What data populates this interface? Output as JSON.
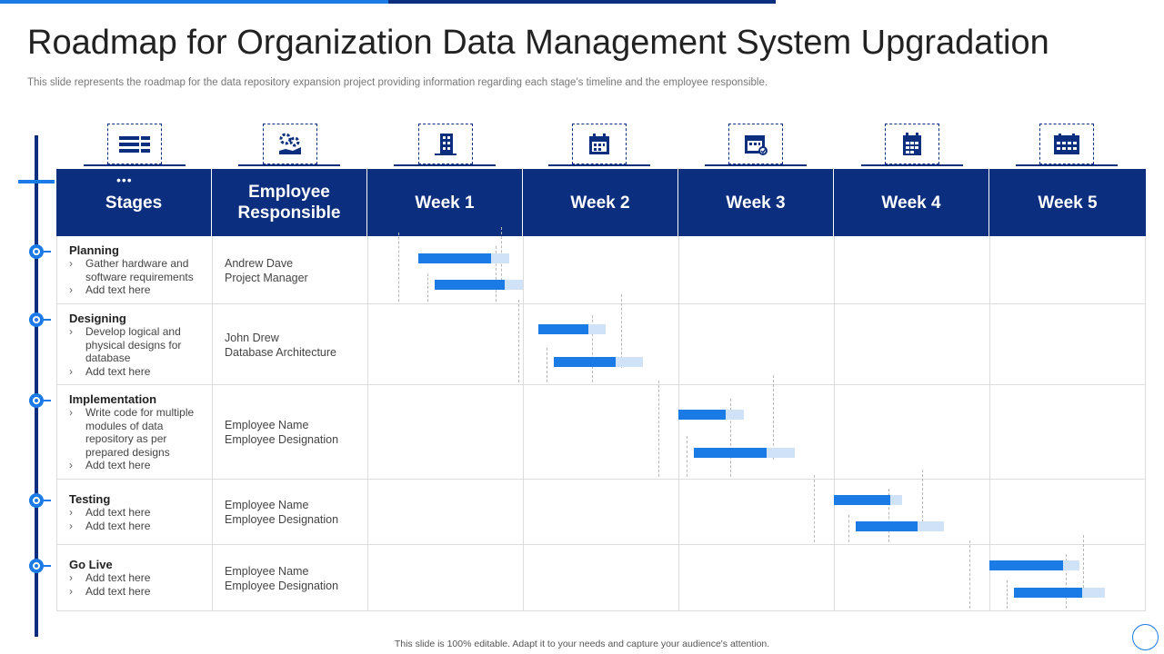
{
  "title": "Roadmap for Organization Data Management System Upgradation",
  "subtitle": "This slide represents the roadmap for the data repository expansion project providing information regarding each stage's timeline and the employee responsible.",
  "footer": "This slide is 100% editable. Adapt it to your needs and capture your audience's attention.",
  "colors": {
    "dark_blue": "#0b2e7e",
    "accent_blue": "#1a7ae6",
    "light_blue": "#cfe2f8"
  },
  "icons": [
    "layers-icon",
    "gear-hand-icon",
    "building-icon",
    "calendar-icon",
    "calendar-check-icon",
    "calendar-grid-icon",
    "calendar-week-icon"
  ],
  "header": {
    "stages": "Stages",
    "employee": "Employee Responsible",
    "weeks": [
      "Week 1",
      "Week 2",
      "Week 3",
      "Week 4",
      "Week 5"
    ]
  },
  "rows": [
    {
      "stage": "Planning",
      "bullets": [
        "Gather hardware and software requirements",
        "Add text here"
      ],
      "employee_name": "Andrew Dave",
      "employee_role": "Project Manager",
      "tasks": [
        {
          "start": 0.33,
          "end": 0.91,
          "done": 0.8
        },
        {
          "start": 0.43,
          "end": 1.0,
          "done": 0.8
        }
      ]
    },
    {
      "stage": "Designing",
      "bullets": [
        "Develop logical and physical designs for database",
        "Add text here"
      ],
      "employee_name": "John Drew",
      "employee_role": "Database Architecture",
      "tasks": [
        {
          "start": 1.1,
          "end": 1.53,
          "done": 0.75
        },
        {
          "start": 1.2,
          "end": 1.77,
          "done": 0.7
        }
      ]
    },
    {
      "stage": "Implementation",
      "bullets": [
        "Write code for multiple modules of data repository as per prepared designs",
        "Add text here"
      ],
      "employee_name": "Employee Name",
      "employee_role": "Employee Designation",
      "tasks": [
        {
          "start": 2.0,
          "end": 2.42,
          "done": 0.72
        },
        {
          "start": 2.1,
          "end": 2.75,
          "done": 0.72
        }
      ]
    },
    {
      "stage": "Testing",
      "bullets": [
        "Add text here",
        "Add text here"
      ],
      "employee_name": "Employee Name",
      "employee_role": "Employee Designation",
      "tasks": [
        {
          "start": 3.0,
          "end": 3.44,
          "done": 0.83
        },
        {
          "start": 3.14,
          "end": 3.71,
          "done": 0.7
        }
      ]
    },
    {
      "stage": "Go Live",
      "bullets": [
        "Add text here",
        "Add text here"
      ],
      "employee_name": "Employee Name",
      "employee_role": "Employee Designation",
      "tasks": [
        {
          "start": 4.0,
          "end": 4.58,
          "done": 0.82
        },
        {
          "start": 4.16,
          "end": 4.74,
          "done": 0.75
        }
      ]
    }
  ]
}
